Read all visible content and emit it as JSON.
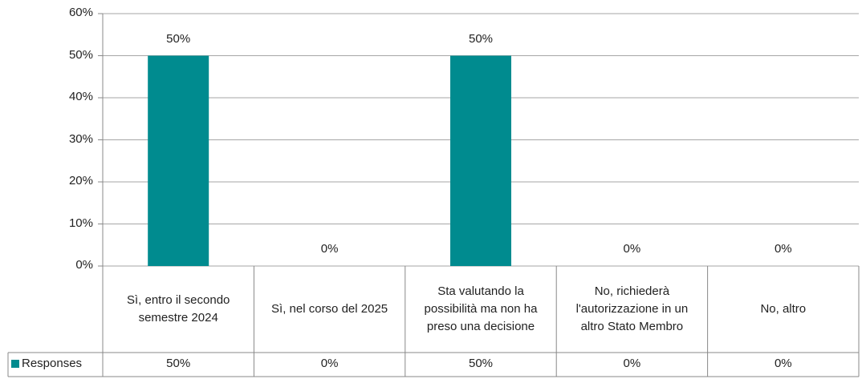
{
  "chart_data": {
    "type": "bar",
    "categories": [
      "Sì, entro il secondo semestre 2024",
      "Sì, nel corso del 2025",
      "Sta valutando la possibilità ma non ha preso una decisione",
      "No, richiederà l'autorizzazione in un altro Stato Membro",
      "No, altro"
    ],
    "series": [
      {
        "name": "Responses",
        "color": "#008b8f",
        "values": [
          50,
          0,
          50,
          0,
          0
        ],
        "value_labels": [
          "50%",
          "0%",
          "50%",
          "0%",
          "0%"
        ]
      }
    ],
    "ylim": [
      0,
      60
    ],
    "yticks": [
      {
        "value": 0,
        "label": "0%"
      },
      {
        "value": 10,
        "label": "10%"
      },
      {
        "value": 20,
        "label": "20%"
      },
      {
        "value": 30,
        "label": "30%"
      },
      {
        "value": 40,
        "label": "40%"
      },
      {
        "value": 50,
        "label": "50%"
      },
      {
        "value": 60,
        "label": "60%"
      }
    ],
    "grid": true
  }
}
